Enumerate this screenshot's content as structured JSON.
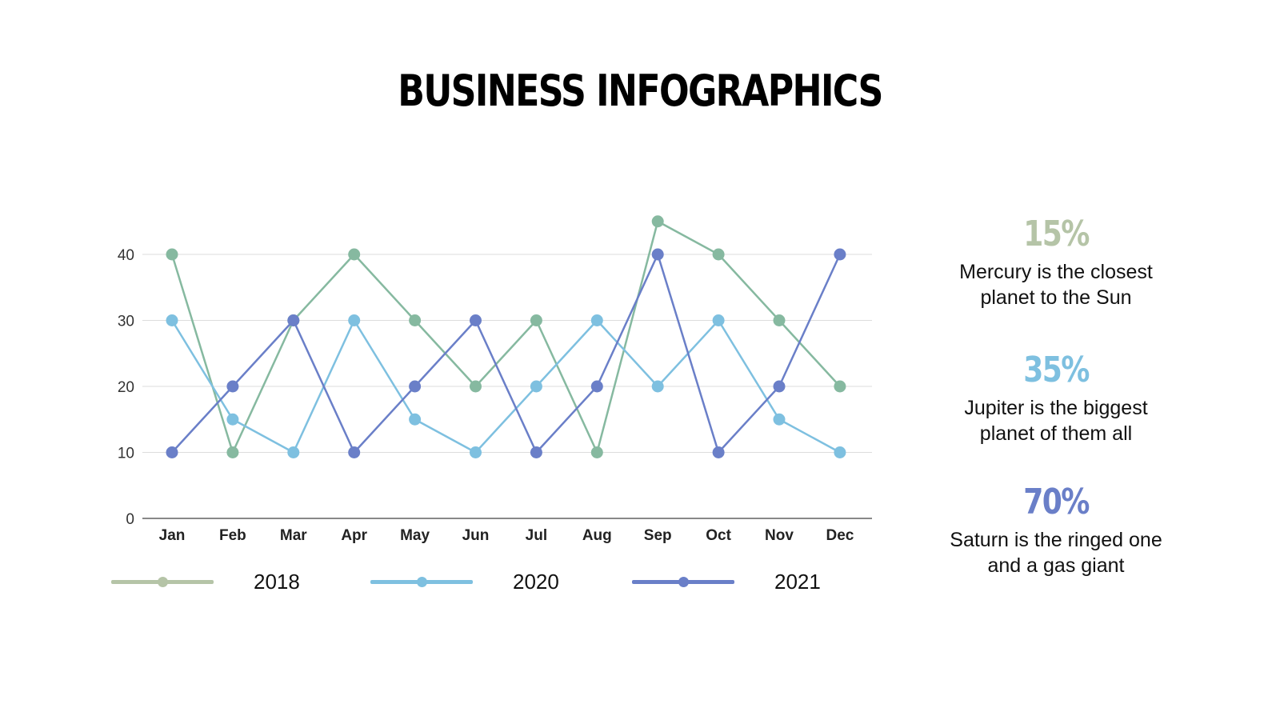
{
  "title": "BUSINESS INFOGRAPHICS",
  "chart_data": {
    "type": "line",
    "categories": [
      "Jan",
      "Feb",
      "Mar",
      "Apr",
      "May",
      "Jun",
      "Jul",
      "Aug",
      "Sep",
      "Oct",
      "Nov",
      "Dec"
    ],
    "yticks": [
      0,
      10,
      20,
      30,
      40
    ],
    "ylim": [
      0,
      50
    ],
    "grid": true,
    "legend_position": "bottom",
    "series": [
      {
        "name": "2018",
        "color": "#86b9a0",
        "legend_color": "#b5c4a7",
        "values": [
          40,
          10,
          30,
          40,
          30,
          20,
          30,
          10,
          45,
          40,
          30,
          20
        ]
      },
      {
        "name": "2020",
        "color": "#7ec0e0",
        "legend_color": "#7ec0e0",
        "values": [
          30,
          15,
          10,
          30,
          15,
          10,
          20,
          30,
          20,
          30,
          15,
          10
        ]
      },
      {
        "name": "2021",
        "color": "#6a7fc8",
        "legend_color": "#6a7fc8",
        "values": [
          10,
          20,
          30,
          10,
          20,
          30,
          10,
          20,
          40,
          10,
          20,
          40
        ]
      }
    ]
  },
  "stats": [
    {
      "value": "15%",
      "color": "#b5c4a7",
      "text": "Mercury is the closest planet to the Sun"
    },
    {
      "value": "35%",
      "color": "#7ec0e0",
      "text": "Jupiter is the biggest planet of them all"
    },
    {
      "value": "70%",
      "color": "#6a7fc8",
      "text": "Saturn is the ringed one and a gas giant"
    }
  ]
}
